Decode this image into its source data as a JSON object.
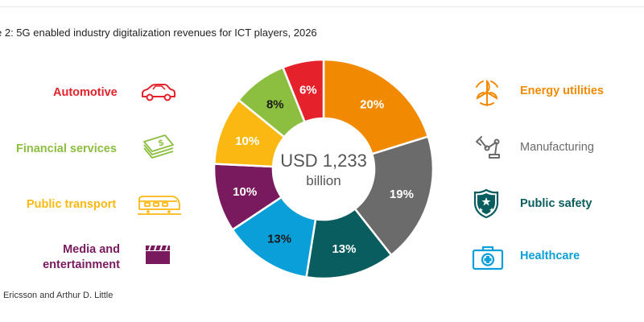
{
  "title": "e 2: 5G enabled industry digitalization revenues for ICT players, 2026",
  "source": "Ericsson and Arthur D. Little",
  "center": {
    "line1": "USD 1,233",
    "line2": "billion"
  },
  "left_labels": [
    {
      "text": "Automotive",
      "color": "#e5222b",
      "icon": "car-icon"
    },
    {
      "text": "Financial services",
      "color": "#8cbe3f",
      "icon": "money-icon"
    },
    {
      "text": "Public transport",
      "color": "#fbb810",
      "icon": "train-icon"
    },
    {
      "line1": "Media and",
      "line2": "entertainment",
      "color": "#7a1a5e",
      "icon": "clapperboard-icon"
    }
  ],
  "right_labels": [
    {
      "text": "Energy utilities",
      "color": "#f18a00",
      "icon": "wind-turbine-icon"
    },
    {
      "text": "Manufacturing",
      "color": "#6b6b6b",
      "icon": "robot-arm-icon"
    },
    {
      "text": "Public safety",
      "color": "#0a5d5f",
      "icon": "shield-icon"
    },
    {
      "text": "Healthcare",
      "color": "#0a9fd8",
      "icon": "first-aid-kit-icon"
    }
  ],
  "chart_data": {
    "type": "pie",
    "variant": "donut",
    "title": "e 2: 5G enabled industry digitalization revenues for ICT players, 2026",
    "total_label": "USD 1,233 billion",
    "slices": [
      {
        "name": "Energy utilities",
        "value": 20,
        "label": "20%",
        "color": "#f18a00",
        "label_color": "#ffffff"
      },
      {
        "name": "Manufacturing",
        "value": 19,
        "label": "19%",
        "color": "#6b6b6b",
        "label_color": "#ffffff"
      },
      {
        "name": "Public safety",
        "value": 13,
        "label": "13%",
        "color": "#0a5d5f",
        "label_color": "#ffffff"
      },
      {
        "name": "Healthcare",
        "value": 13,
        "label": "13%",
        "color": "#0a9fd8",
        "label_color": "#1a1a1a"
      },
      {
        "name": "Media and entertainment",
        "value": 10,
        "label": "10%",
        "color": "#7a1a5e",
        "label_color": "#ffffff"
      },
      {
        "name": "Public transport",
        "value": 10,
        "label": "10%",
        "color": "#fbb810",
        "label_color": "#ffffff"
      },
      {
        "name": "Financial services",
        "value": 8,
        "label": "8%",
        "color": "#8cbe3f",
        "label_color": "#1a1a1a"
      },
      {
        "name": "Automotive",
        "value": 6,
        "label": "6%",
        "color": "#e5222b",
        "label_color": "#ffffff"
      }
    ]
  }
}
